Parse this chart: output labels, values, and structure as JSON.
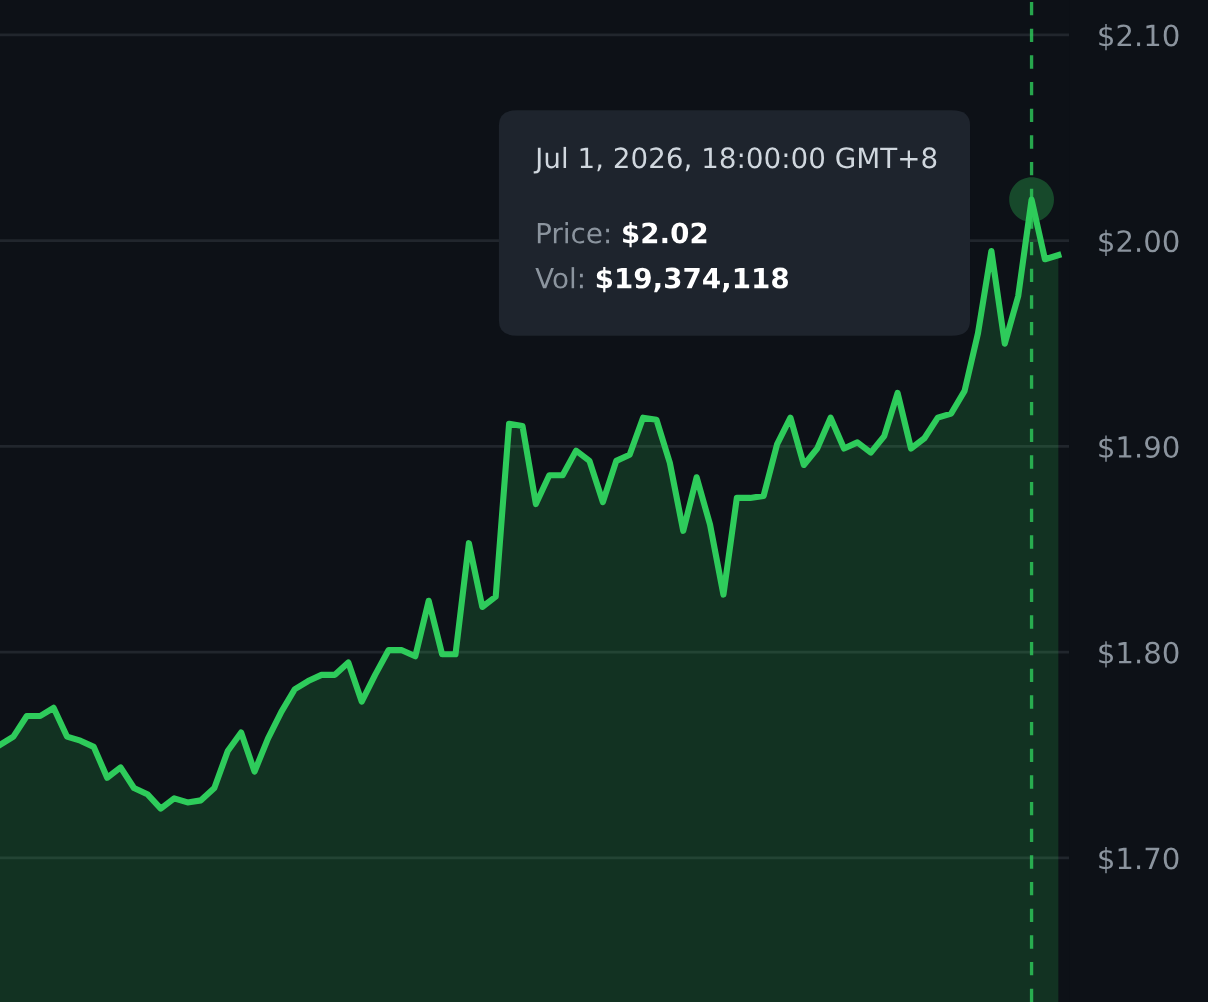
{
  "chart_data": {
    "type": "area",
    "categories": [
      null,
      null,
      null,
      null,
      null,
      null,
      null,
      null,
      null,
      null,
      null,
      null,
      null,
      null,
      null,
      null,
      null,
      null,
      null,
      null,
      null,
      null,
      null,
      null,
      null,
      null,
      null,
      null,
      null,
      null,
      null,
      null,
      null,
      null,
      null,
      null,
      null,
      null,
      null,
      null,
      null,
      null,
      null,
      null,
      null,
      null,
      null,
      null,
      null,
      null,
      null,
      null,
      null,
      null,
      null,
      null,
      null,
      null,
      null,
      null,
      null,
      null,
      null,
      null,
      null,
      null,
      null,
      null,
      null,
      null,
      null,
      null,
      null,
      null,
      null,
      null,
      null,
      null,
      null,
      null
    ],
    "series": [
      {
        "color": "#2ecc5b",
        "values": [
          1.755,
          1.759,
          1.769,
          1.769,
          1.773,
          1.759,
          1.757,
          1.754,
          1.739,
          1.744,
          1.734,
          1.731,
          1.724,
          1.729,
          1.727,
          1.728,
          1.734,
          1.752,
          1.761,
          1.742,
          1.758,
          1.771,
          1.782,
          1.786,
          1.789,
          1.789,
          1.795,
          1.776,
          1.789,
          1.801,
          1.801,
          1.798,
          1.825,
          1.799,
          1.799,
          1.853,
          1.822,
          1.827,
          1.911,
          1.91,
          1.872,
          1.886,
          1.886,
          1.898,
          1.893,
          1.873,
          1.893,
          1.896,
          1.914,
          1.913,
          1.892,
          1.859,
          1.885,
          1.862,
          1.828,
          1.875,
          1.875,
          1.876,
          1.901,
          1.914,
          1.891,
          1.899,
          1.914,
          1.899,
          1.902,
          1.897,
          1.905,
          1.926,
          1.899,
          1.904,
          1.914,
          1.916,
          1.927,
          1.955,
          1.995,
          1.95,
          1.973,
          2.02,
          1.991,
          1.993
        ]
      }
    ],
    "ylim": [
      1.63,
      2.117
    ],
    "yticks": [
      {
        "value": 1.7,
        "label": "$1.70"
      },
      {
        "value": 1.8,
        "label": "$1.80"
      },
      {
        "value": 1.9,
        "label": "$1.90"
      },
      {
        "value": 2.0,
        "label": "$2.00"
      },
      {
        "value": 2.1,
        "label": "$2.10"
      }
    ],
    "grid": "y",
    "tick_labels": "y",
    "annotations": [
      "Jul 1, 2026, 18:00:00 GMT+8",
      "Price: $2.02",
      "Vol: $19,374,118"
    ]
  }
}
